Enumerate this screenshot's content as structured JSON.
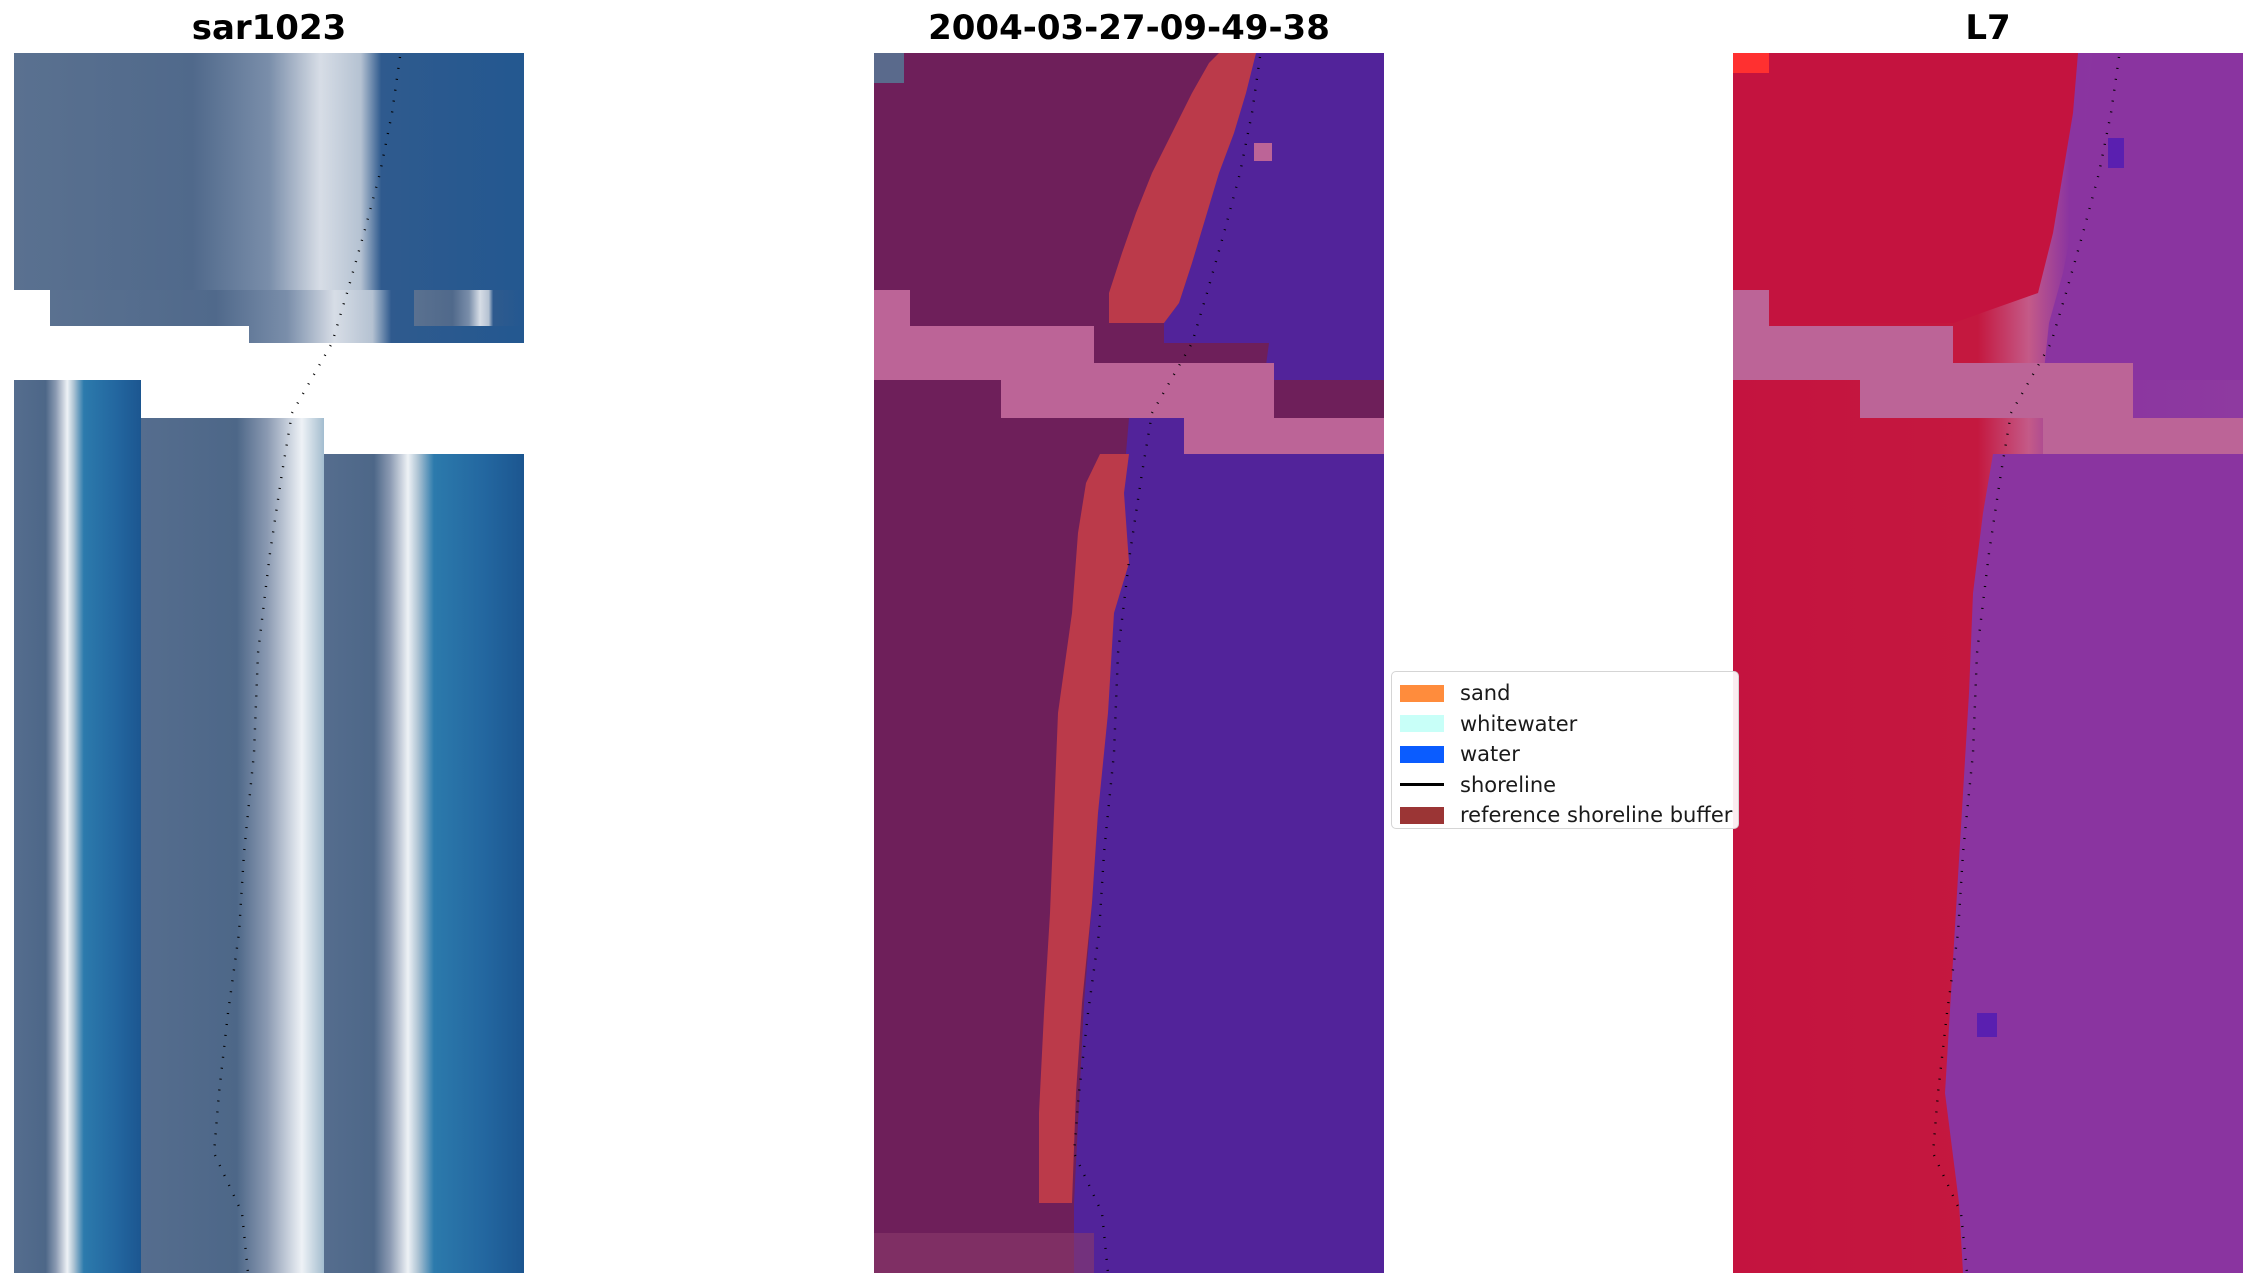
{
  "titles": {
    "left": "sar1023",
    "center": "2004-03-27-09-49-38",
    "right": "L7"
  },
  "legend": {
    "items": [
      {
        "label": "sand",
        "color": "#ff8c3c",
        "kind": "patch"
      },
      {
        "label": "whitewater",
        "color": "#c8fff8",
        "kind": "patch"
      },
      {
        "label": "water",
        "color": "#0a5cff",
        "kind": "patch"
      },
      {
        "label": "shoreline",
        "color": "#000000",
        "kind": "line"
      },
      {
        "label": "reference shoreline buffer",
        "color": "#9b3535",
        "kind": "patch"
      }
    ]
  },
  "colors": {
    "rgb_land": "#4f6a8c",
    "rgb_beach": "#e6ecf2",
    "rgb_water": "#1f5d96",
    "class_land": "#6e1f5a",
    "class_buffer": "#bb3a4a",
    "class_water": "#52239a",
    "class_nodata": "#bc6497",
    "ndwi_land": "#c4133f",
    "ndwi_water": "#8a34a0",
    "ndwi_nodata": "#bc6497"
  }
}
